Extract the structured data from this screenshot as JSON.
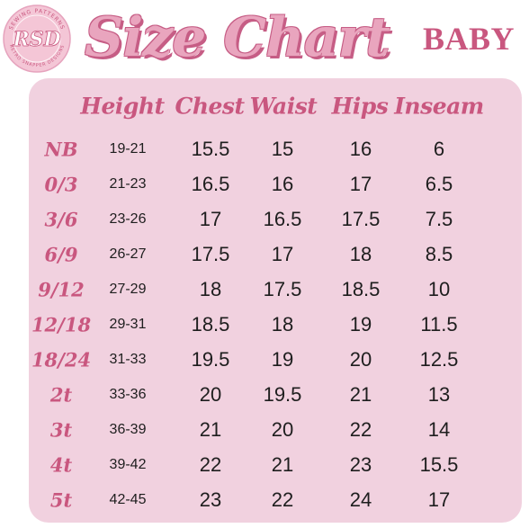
{
  "title": "Size Chart",
  "subtitle": "BABY",
  "logo": {
    "initials": "RSD",
    "ring_text_top": "SEWING PATTERNS",
    "ring_text_bottom": "RETRO SNAPPER DESIGNS"
  },
  "headers": [
    "Height",
    "Chest",
    "Waist",
    "Hips",
    "Inseam"
  ],
  "rows": [
    {
      "size": "NB",
      "height": "19-21",
      "chest": "15.5",
      "waist": "15",
      "hips": "16",
      "inseam": "6"
    },
    {
      "size": "0/3",
      "height": "21-23",
      "chest": "16.5",
      "waist": "16",
      "hips": "17",
      "inseam": "6.5"
    },
    {
      "size": "3/6",
      "height": "23-26",
      "chest": "17",
      "waist": "16.5",
      "hips": "17.5",
      "inseam": "7.5"
    },
    {
      "size": "6/9",
      "height": "26-27",
      "chest": "17.5",
      "waist": "17",
      "hips": "18",
      "inseam": "8.5"
    },
    {
      "size": "9/12",
      "height": "27-29",
      "chest": "18",
      "waist": "17.5",
      "hips": "18.5",
      "inseam": "10"
    },
    {
      "size": "12/18",
      "height": "29-31",
      "chest": "18.5",
      "waist": "18",
      "hips": "19",
      "inseam": "11.5"
    },
    {
      "size": "18/24",
      "height": "31-33",
      "chest": "19.5",
      "waist": "19",
      "hips": "20",
      "inseam": "12.5"
    },
    {
      "size": "2t",
      "height": "33-36",
      "chest": "20",
      "waist": "19.5",
      "hips": "21",
      "inseam": "13"
    },
    {
      "size": "3t",
      "height": "36-39",
      "chest": "21",
      "waist": "20",
      "hips": "22",
      "inseam": "14"
    },
    {
      "size": "4t",
      "height": "39-42",
      "chest": "22",
      "waist": "21",
      "hips": "23",
      "inseam": "15.5"
    },
    {
      "size": "5t",
      "height": "42-45",
      "chest": "23",
      "waist": "22",
      "hips": "24",
      "inseam": "17"
    }
  ],
  "colors": {
    "accent": "#c9577f",
    "title_fill": "#e9a5be",
    "panel": "#f1d1df",
    "logo_bg": "#f4c6d6",
    "value_text": "#1e1e1e"
  }
}
